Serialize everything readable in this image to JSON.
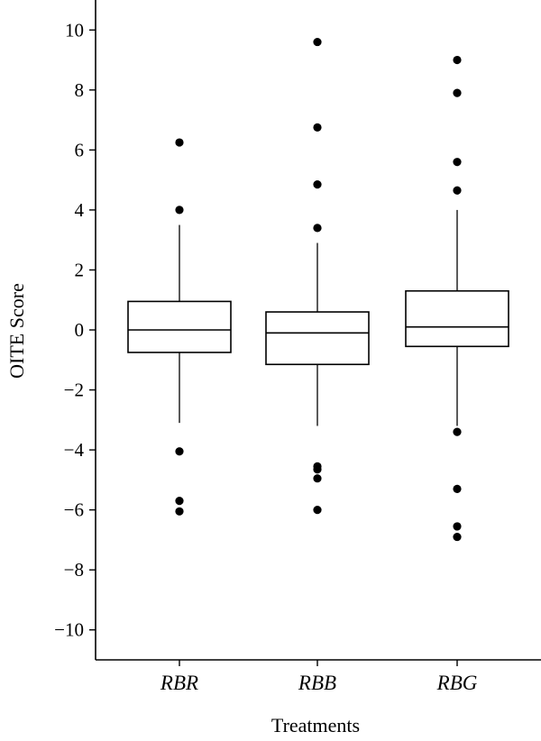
{
  "chart_data": {
    "type": "boxplot",
    "xlabel": "Treatments",
    "ylabel": "OITE Score",
    "ylim": [
      -11,
      11
    ],
    "yticks": [
      10,
      8,
      6,
      4,
      2,
      0,
      -2,
      -4,
      -6,
      -8,
      -10
    ],
    "ytick_labels": [
      "10",
      "8",
      "6",
      "4",
      "2",
      "0",
      "−2",
      "−4",
      "−6",
      "−8",
      "−10"
    ],
    "categories": [
      "RBR",
      "RBB",
      "RBG"
    ],
    "boxes": [
      {
        "name": "RBR",
        "q1": -0.75,
        "median": 0.0,
        "q3": 0.95,
        "whisker_low": -3.1,
        "whisker_high": 3.5,
        "outliers": [
          6.25,
          4.0,
          -4.05,
          -5.7,
          -6.05
        ]
      },
      {
        "name": "RBB",
        "q1": -1.15,
        "median": -0.1,
        "q3": 0.6,
        "whisker_low": -3.2,
        "whisker_high": 2.9,
        "outliers": [
          9.6,
          6.75,
          4.85,
          3.4,
          -4.55,
          -4.65,
          -4.95,
          -6.0
        ]
      },
      {
        "name": "RBG",
        "q1": -0.55,
        "median": 0.1,
        "q3": 1.3,
        "whisker_low": -3.2,
        "whisker_high": 4.0,
        "outliers": [
          9.0,
          7.9,
          5.6,
          4.65,
          -3.4,
          -5.3,
          -6.55,
          -6.9
        ]
      }
    ],
    "grid": false,
    "colors": {
      "stroke": "#000000",
      "fill": "#ffffff",
      "outlier": "#000000"
    }
  }
}
